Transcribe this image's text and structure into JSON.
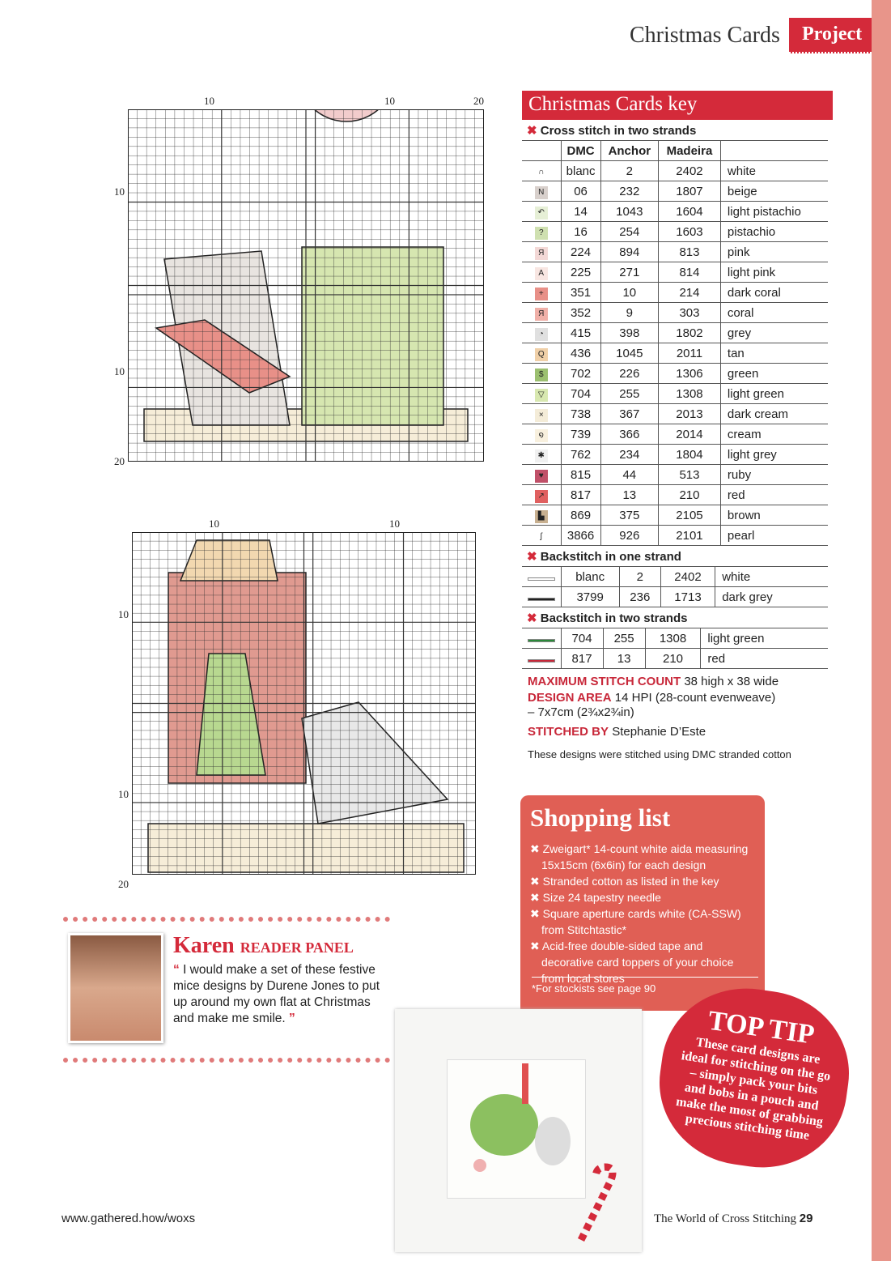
{
  "header": {
    "section": "Christmas Cards",
    "tag": "Project"
  },
  "charts": [
    {
      "top_labels": [
        "10",
        "10",
        "20"
      ],
      "left_labels": [
        "10",
        "10",
        "20"
      ]
    },
    {
      "top_labels": [
        "10",
        "10"
      ],
      "left_labels": [
        "10",
        "10",
        "20"
      ]
    }
  ],
  "key": {
    "title": "Christmas Cards key",
    "cross_title": "Cross stitch in two strands",
    "columns": [
      "DMC",
      "Anchor",
      "Madeira",
      ""
    ],
    "cross": [
      {
        "sym": "∩",
        "bg": "#ffffff",
        "dmc": "blanc",
        "anchor": "2",
        "madeira": "2402",
        "name": "white"
      },
      {
        "sym": "N",
        "bg": "#d8d0cc",
        "dmc": "06",
        "anchor": "232",
        "madeira": "1807",
        "name": "beige"
      },
      {
        "sym": "↶",
        "bg": "#e6efd6",
        "dmc": "14",
        "anchor": "1043",
        "madeira": "1604",
        "name": "light pistachio"
      },
      {
        "sym": "?",
        "bg": "#cfe0b0",
        "dmc": "16",
        "anchor": "254",
        "madeira": "1603",
        "name": "pistachio"
      },
      {
        "sym": "Я",
        "bg": "#f3d8d6",
        "dmc": "224",
        "anchor": "894",
        "madeira": "813",
        "name": "pink"
      },
      {
        "sym": "A",
        "bg": "#f8e6e2",
        "dmc": "225",
        "anchor": "271",
        "madeira": "814",
        "name": "light pink"
      },
      {
        "sym": "+",
        "bg": "#e89088",
        "dmc": "351",
        "anchor": "10",
        "madeira": "214",
        "name": "dark coral"
      },
      {
        "sym": "Я",
        "bg": "#f0b0a8",
        "dmc": "352",
        "anchor": "9",
        "madeira": "303",
        "name": "coral"
      },
      {
        "sym": "◔",
        "bg": "#e0e0e0",
        "dmc": "415",
        "anchor": "398",
        "madeira": "1802",
        "name": "grey"
      },
      {
        "sym": "Q",
        "bg": "#f0d0a8",
        "dmc": "436",
        "anchor": "1045",
        "madeira": "2011",
        "name": "tan"
      },
      {
        "sym": "$",
        "bg": "#9cc070",
        "dmc": "702",
        "anchor": "226",
        "madeira": "1306",
        "name": "green"
      },
      {
        "sym": "▽",
        "bg": "#d8e8b0",
        "dmc": "704",
        "anchor": "255",
        "madeira": "1308",
        "name": "light green"
      },
      {
        "sym": "×",
        "bg": "#f4ecd8",
        "dmc": "738",
        "anchor": "367",
        "madeira": "2013",
        "name": "dark cream"
      },
      {
        "sym": "໑",
        "bg": "#f8f0de",
        "dmc": "739",
        "anchor": "366",
        "madeira": "2014",
        "name": "cream"
      },
      {
        "sym": "✱",
        "bg": "#f0f0f0",
        "dmc": "762",
        "anchor": "234",
        "madeira": "1804",
        "name": "light grey"
      },
      {
        "sym": "♥",
        "bg": "#c05068",
        "dmc": "815",
        "anchor": "44",
        "madeira": "513",
        "name": "ruby"
      },
      {
        "sym": "↗",
        "bg": "#e06060",
        "dmc": "817",
        "anchor": "13",
        "madeira": "210",
        "name": "red"
      },
      {
        "sym": "▙",
        "bg": "#c8b090",
        "dmc": "869",
        "anchor": "375",
        "madeira": "2105",
        "name": "brown"
      },
      {
        "sym": "ʃ",
        "bg": "#ffffff",
        "dmc": "3866",
        "anchor": "926",
        "madeira": "2101",
        "name": "pearl"
      }
    ],
    "back1_title": "Backstitch in one strand",
    "back1": [
      {
        "line": "#ffffff",
        "dmc": "blanc",
        "anchor": "2",
        "madeira": "2402",
        "name": "white"
      },
      {
        "line": "#222222",
        "dmc": "3799",
        "anchor": "236",
        "madeira": "1713",
        "name": "dark grey"
      }
    ],
    "back2_title": "Backstitch in two strands",
    "back2": [
      {
        "line": "#2a8a3a",
        "dmc": "704",
        "anchor": "255",
        "madeira": "1308",
        "name": "light green"
      },
      {
        "line": "#c8283a",
        "dmc": "817",
        "anchor": "13",
        "madeira": "210",
        "name": "red"
      }
    ]
  },
  "info": {
    "count_label": "MAXIMUM STITCH COUNT",
    "count": "38 high x 38 wide",
    "area_label": "DESIGN AREA",
    "area": "14 HPI (28-count evenweave)",
    "area2": "– 7x7cm (2¾x2¾in)",
    "by_label": "STITCHED BY",
    "by": "Stephanie D’Este",
    "note": "These designs were stitched using DMC stranded cotton"
  },
  "shopping": {
    "title": "Shopping list",
    "items": [
      "Zweigart* 14-count white aida measuring 15x15cm (6x6in) for each design",
      "Stranded cotton as listed in the key",
      "Size 24 tapestry needle",
      "Square aperture cards white (CA-SSW) from Stitchtastic*",
      "Acid-free double-sided tape and decorative card toppers of your choice from local stores"
    ],
    "footnote": "*For stockists see page 90"
  },
  "panel": {
    "name": "Karen",
    "label": "READER PANEL",
    "quote": "I would make a set of these festive mice designs by Durene Jones to put up around my own flat at Christmas and make me smile."
  },
  "tip": {
    "title": "TOP TIP",
    "text": "These card designs are ideal for stitching on the go – simply pack your bits and bobs in a pouch and make the most of grabbing precious stitching time"
  },
  "footer": {
    "url": "www.gathered.how/woxs",
    "magazine": "The World of Cross Stitching",
    "page": "29"
  },
  "colors": {
    "accent": "#d42a3a",
    "shop_bg": "#e05f55",
    "edge": "#e8958a"
  }
}
